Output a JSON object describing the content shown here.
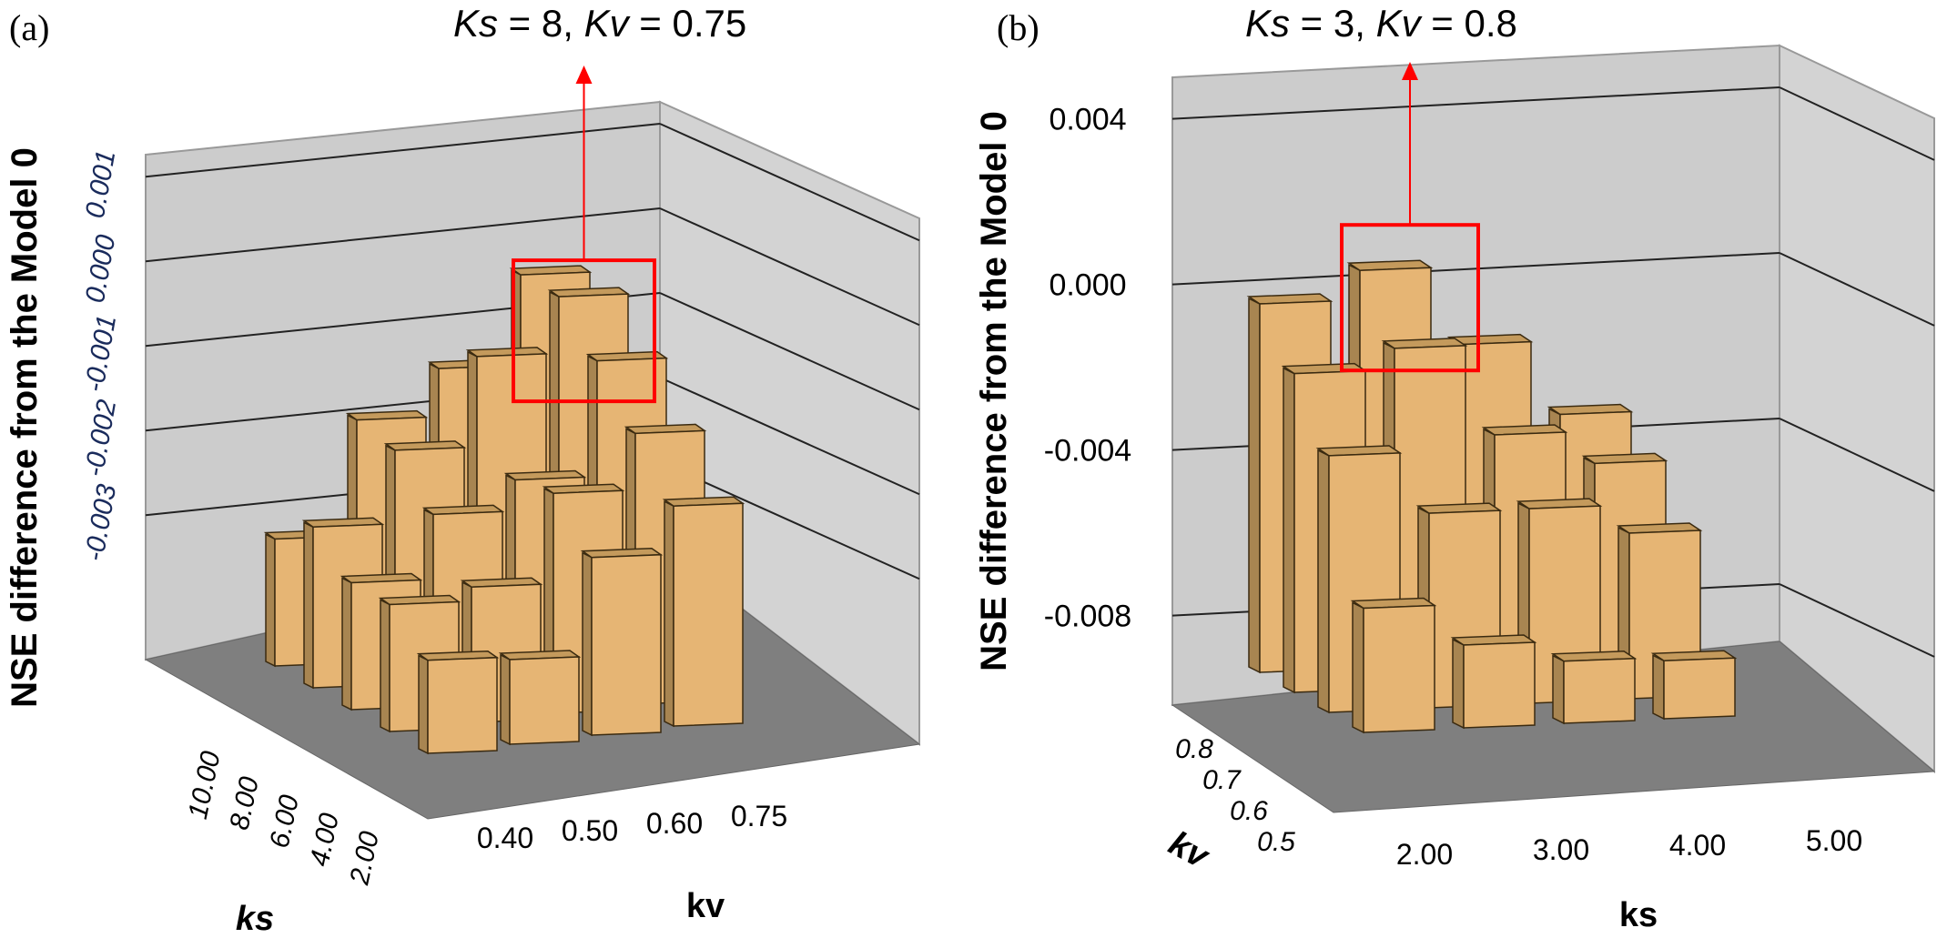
{
  "chart_data": [
    {
      "panel_label": "(a)",
      "type": "bar3d",
      "title": "",
      "annotation": {
        "ks_label": "Ks",
        "ks_value": "8",
        "kv_label": "Kv",
        "kv_value": "0.75"
      },
      "ylabel": "NSE difference from the Model 0",
      "xlabel": "kv",
      "zlabel": "ks",
      "x_categories": [
        "0.40",
        "0.50",
        "0.60",
        "0.75"
      ],
      "z_categories": [
        "10.00",
        "8.00",
        "6.00",
        "4.00",
        "2.00"
      ],
      "y_ticks": [
        "-0.003",
        "-0.002",
        "-0.001",
        "0.000",
        "0.001"
      ],
      "ylim": [
        -0.0034,
        0.0016
      ],
      "values": [
        [
          -0.0019,
          -0.0006,
          -0.0001,
          0.0009
        ],
        [
          -0.0015,
          -0.0007,
          0.0003,
          0.0009
        ],
        [
          -0.0019,
          -0.0012,
          -0.0009,
          0.0004
        ],
        [
          -0.0019,
          -0.0018,
          -0.0008,
          -0.0002
        ],
        [
          -0.0023,
          -0.0024,
          -0.0013,
          -0.0008
        ]
      ],
      "highlight": {
        "x": "0.75",
        "z": "8.00"
      }
    },
    {
      "panel_label": "(b)",
      "type": "bar3d",
      "title": "",
      "annotation": {
        "ks_label": "Ks",
        "ks_value": "3",
        "kv_label": "Kv",
        "kv_value": "0.8"
      },
      "ylabel": "NSE difference from the Model 0",
      "xlabel": "ks",
      "zlabel": "kv",
      "x_categories": [
        "2.00",
        "3.00",
        "4.00",
        "5.00"
      ],
      "z_categories": [
        "0.8",
        "0.7",
        "0.6",
        "0.5"
      ],
      "y_ticks": [
        "-0.008",
        "-0.004",
        "0.000",
        "0.004"
      ],
      "ylim": [
        -0.0092,
        0.0052
      ],
      "values": [
        [
          -0.0003,
          0.0004,
          -0.0015,
          -0.0033
        ],
        [
          -0.0015,
          -0.001,
          -0.0032,
          -0.004
        ],
        [
          -0.003,
          -0.0045,
          -0.0045,
          -0.0052
        ],
        [
          -0.0062,
          -0.0072,
          -0.0077,
          -0.0078
        ]
      ],
      "highlight": {
        "x": "3.00",
        "z": "0.8"
      }
    }
  ]
}
